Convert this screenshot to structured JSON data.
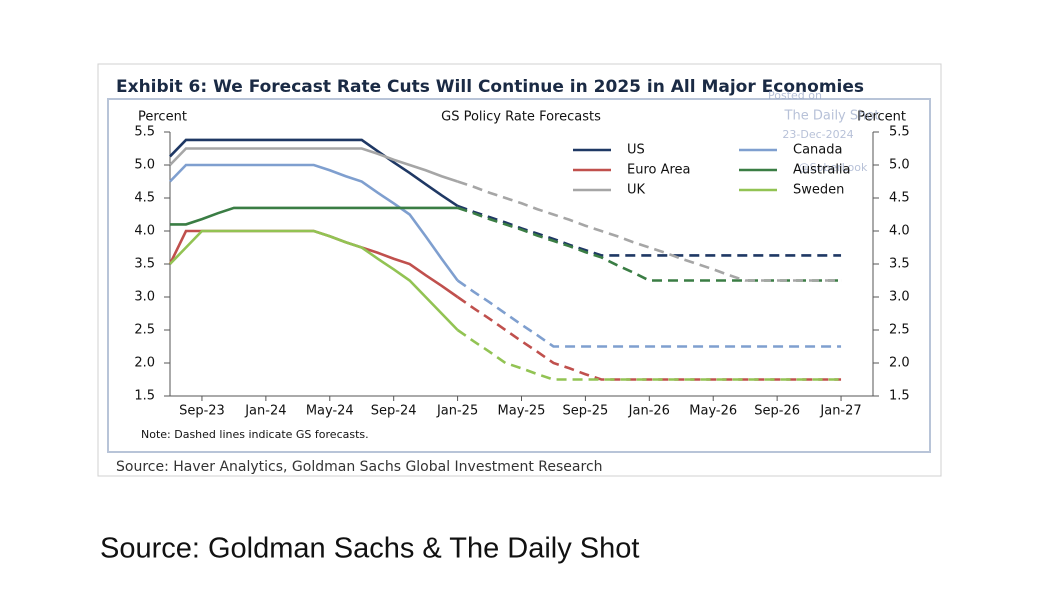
{
  "chart_data": {
    "type": "line",
    "title": "Exhibit 6: We Forecast Rate Cuts Will Continue in 2025 in All Major Economies",
    "subtitle": "GS Policy Rate Forecasts",
    "y_label": "Percent",
    "y2_label": "Percent",
    "note": "Note: Dashed lines indicate GS forecasts.",
    "source": "Source: Haver Analytics, Goldman Sachs Global Investment Research",
    "watermark": [
      "Posted on",
      "The Daily Shot",
      "23-Dec-2024",
      "@SoberLook"
    ],
    "forecast_from": "Jan-25",
    "x": [
      "Jul-23",
      "Aug-23",
      "Sep-23",
      "Oct-23",
      "Nov-23",
      "Dec-23",
      "Jan-24",
      "Feb-24",
      "Mar-24",
      "Apr-24",
      "May-24",
      "Jun-24",
      "Jul-24",
      "Aug-24",
      "Sep-24",
      "Oct-24",
      "Nov-24",
      "Dec-24",
      "Jan-25",
      "Feb-25",
      "Mar-25",
      "Apr-25",
      "May-25",
      "Jun-25",
      "Jul-25",
      "Aug-25",
      "Sep-25",
      "Oct-25",
      "Nov-25",
      "Dec-25",
      "Jan-26",
      "Feb-26",
      "Mar-26",
      "Apr-26",
      "May-26",
      "Jun-26",
      "Jul-26",
      "Aug-26",
      "Sep-26",
      "Oct-26",
      "Nov-26",
      "Dec-26",
      "Jan-27"
    ],
    "xlim": [
      "Jul-23",
      "Mar-27"
    ],
    "xticks": [
      "Sep-23",
      "Jan-24",
      "May-24",
      "Sep-24",
      "Jan-25",
      "May-25",
      "Sep-25",
      "Jan-26",
      "May-26",
      "Sep-26",
      "Jan-27"
    ],
    "ylim": [
      1.5,
      5.5
    ],
    "yticks": [
      {
        "value": 1.5,
        "label": "1.5"
      },
      {
        "value": 2,
        "label": "2.0"
      },
      {
        "value": 2.5,
        "label": "2.5"
      },
      {
        "value": 3,
        "label": "3.0"
      },
      {
        "value": 3.5,
        "label": "3.5"
      },
      {
        "value": 4,
        "label": "4.0"
      },
      {
        "value": 4.5,
        "label": "4.5"
      },
      {
        "value": 5,
        "label": "5.0"
      },
      {
        "value": 5.5,
        "label": "5.5"
      }
    ],
    "y2lim": [
      1.5,
      5.5
    ],
    "y2ticks": [
      {
        "value": 1.5,
        "label": "1.5"
      },
      {
        "value": 2,
        "label": "2.0"
      },
      {
        "value": 2.5,
        "label": "2.5"
      },
      {
        "value": 3,
        "label": "3.0"
      },
      {
        "value": 3.5,
        "label": "3.5"
      },
      {
        "value": 4,
        "label": "4.0"
      },
      {
        "value": 4.5,
        "label": "4.5"
      },
      {
        "value": 5,
        "label": "5.0"
      },
      {
        "value": 5.5,
        "label": "5.5"
      }
    ],
    "legend_position": "top-right",
    "series": [
      {
        "name": "US",
        "color": "#1f3864",
        "values": [
          5.13,
          5.38,
          5.38,
          5.38,
          5.38,
          5.38,
          5.38,
          5.38,
          5.38,
          5.38,
          5.38,
          5.38,
          5.38,
          5.21,
          5.04,
          4.88,
          4.71,
          4.54,
          4.38,
          4.29,
          4.21,
          4.13,
          4.04,
          3.96,
          3.88,
          3.79,
          3.71,
          3.63,
          3.63,
          3.63,
          3.63,
          3.63,
          3.63,
          3.63,
          3.63,
          3.63,
          3.63,
          3.63,
          3.63,
          3.63,
          3.63,
          3.63,
          3.63
        ]
      },
      {
        "name": "Canada",
        "color": "#7f9fcf",
        "values": [
          4.75,
          5.0,
          5.0,
          5.0,
          5.0,
          5.0,
          5.0,
          5.0,
          5.0,
          5.0,
          4.92,
          4.83,
          4.75,
          4.58,
          4.42,
          4.25,
          3.92,
          3.58,
          3.25,
          3.08,
          2.92,
          2.75,
          2.58,
          2.42,
          2.25,
          2.25,
          2.25,
          2.25,
          2.25,
          2.25,
          2.25,
          2.25,
          2.25,
          2.25,
          2.25,
          2.25,
          2.25,
          2.25,
          2.25,
          2.25,
          2.25,
          2.25,
          2.25
        ]
      },
      {
        "name": "Euro Area",
        "color": "#c0504d",
        "values": [
          3.5,
          4.0,
          4.0,
          4.0,
          4.0,
          4.0,
          4.0,
          4.0,
          4.0,
          4.0,
          3.92,
          3.83,
          3.75,
          3.67,
          3.58,
          3.5,
          3.33,
          3.17,
          3.0,
          2.83,
          2.67,
          2.5,
          2.33,
          2.17,
          2.0,
          1.92,
          1.83,
          1.75,
          1.75,
          1.75,
          1.75,
          1.75,
          1.75,
          1.75,
          1.75,
          1.75,
          1.75,
          1.75,
          1.75,
          1.75,
          1.75,
          1.75,
          1.75
        ]
      },
      {
        "name": "Australia",
        "color": "#3a7d44",
        "values": [
          4.1,
          4.1,
          4.18,
          4.27,
          4.35,
          4.35,
          4.35,
          4.35,
          4.35,
          4.35,
          4.35,
          4.35,
          4.35,
          4.35,
          4.35,
          4.35,
          4.35,
          4.35,
          4.35,
          4.27,
          4.18,
          4.1,
          4.02,
          3.93,
          3.85,
          3.77,
          3.68,
          3.6,
          3.48,
          3.37,
          3.25,
          3.25,
          3.25,
          3.25,
          3.25,
          3.25,
          3.25,
          3.25,
          3.25,
          3.25,
          3.25,
          3.25,
          3.25
        ]
      },
      {
        "name": "UK",
        "color": "#a6a6a6",
        "values": [
          5.0,
          5.25,
          5.25,
          5.25,
          5.25,
          5.25,
          5.25,
          5.25,
          5.25,
          5.25,
          5.25,
          5.25,
          5.25,
          5.17,
          5.08,
          5.0,
          4.92,
          4.83,
          4.75,
          4.67,
          4.58,
          4.5,
          4.42,
          4.33,
          4.25,
          4.17,
          4.08,
          4.0,
          3.92,
          3.83,
          3.75,
          3.67,
          3.58,
          3.5,
          3.42,
          3.33,
          3.25,
          3.25,
          3.25,
          3.25,
          3.25,
          3.25,
          3.25
        ]
      },
      {
        "name": "Sweden",
        "color": "#92c353",
        "values": [
          3.5,
          3.75,
          4.0,
          4.0,
          4.0,
          4.0,
          4.0,
          4.0,
          4.0,
          4.0,
          3.92,
          3.83,
          3.75,
          3.58,
          3.42,
          3.25,
          3.0,
          2.75,
          2.5,
          2.33,
          2.17,
          2.0,
          1.92,
          1.83,
          1.75,
          1.75,
          1.75,
          1.75,
          1.75,
          1.75,
          1.75,
          1.75,
          1.75,
          1.75,
          1.75,
          1.75,
          1.75,
          1.75,
          1.75,
          1.75,
          1.75,
          1.75,
          1.75
        ]
      }
    ]
  },
  "caption": "Source: Goldman Sachs & The Daily Shot"
}
